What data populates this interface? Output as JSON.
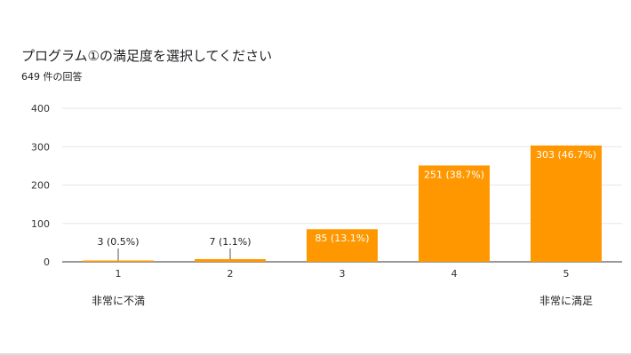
{
  "header": {
    "title": "プログラム①の満足度を選択してください",
    "response_count": "649 件の回答"
  },
  "colors": {
    "bar": "#ff9800",
    "grid": "#e6e6e6",
    "axis": "#333333"
  },
  "chart_data": {
    "type": "bar",
    "title": "プログラム①の満足度を選択してください",
    "categories": [
      "1",
      "2",
      "3",
      "4",
      "5"
    ],
    "values": [
      3,
      7,
      85,
      251,
      303
    ],
    "data_labels": [
      "3 (0.5%)",
      "7 (1.1%)",
      "85 (13.1%)",
      "251 (38.7%)",
      "303 (46.7%)"
    ],
    "ylim": [
      0,
      400
    ],
    "yticks": [
      0,
      100,
      200,
      300,
      400
    ],
    "grid": true,
    "legend": "none",
    "scale_labels": {
      "low": "非常に不満",
      "high": "非常に満足"
    }
  }
}
